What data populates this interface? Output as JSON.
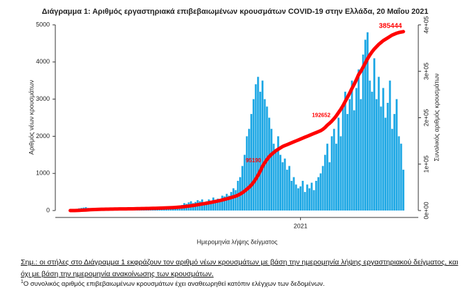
{
  "chart_data": {
    "type": "bar-line",
    "title": "Διάγραμμα 1: Αριθμός εργαστηριακά επιβεβαιωμένων κρουσμάτων COVID-19 στην Ελλάδα, 20 Μαΐου 2021",
    "x_label": "Ημερομηνία λήψης δείγματος",
    "y_label": "Αριθμός νέων κρουσμάτων",
    "y2_label": "Συνολικός αριθμός κρουσμάτων",
    "categories": [
      null,
      null,
      null,
      null,
      null,
      null,
      null,
      null,
      null,
      null,
      null,
      null,
      null,
      null,
      null,
      null,
      null,
      null,
      null,
      null,
      null,
      null,
      null,
      null,
      null,
      null,
      null,
      null,
      null,
      null,
      null,
      null,
      null,
      null,
      null,
      null,
      null,
      null,
      null,
      null,
      null,
      null,
      null,
      null,
      null,
      null,
      null,
      null,
      null,
      null,
      null,
      null,
      null,
      null,
      null,
      null,
      null,
      null,
      null,
      null,
      null,
      null,
      null,
      null,
      null,
      null,
      null,
      null,
      null,
      null,
      null,
      null,
      null,
      null,
      null,
      null,
      null,
      null,
      null,
      null,
      null,
      null,
      null,
      null,
      null,
      null,
      null,
      null,
      null,
      null,
      null,
      null,
      null,
      null,
      null,
      null,
      null,
      null,
      null,
      null,
      null,
      null,
      null,
      "2021",
      null,
      null,
      null,
      null,
      null,
      null,
      null,
      null,
      null,
      null,
      null,
      null,
      null,
      null,
      null,
      null,
      null,
      null,
      null,
      null,
      null,
      null,
      null,
      null,
      null,
      null,
      null,
      null,
      null,
      null,
      null,
      null,
      null,
      null,
      null,
      null,
      null,
      null,
      null,
      null,
      null,
      null,
      null,
      null,
      null,
      null
    ],
    "series": [
      {
        "name": "Νέα κρούσματα",
        "color": "#1aa6e4",
        "values": [
          0,
          5,
          20,
          40,
          60,
          70,
          80,
          90,
          70,
          60,
          50,
          40,
          30,
          20,
          15,
          10,
          15,
          20,
          10,
          15,
          10,
          15,
          20,
          10,
          15,
          20,
          25,
          15,
          20,
          30,
          20,
          25,
          30,
          40,
          30,
          25,
          35,
          40,
          30,
          45,
          40,
          50,
          60,
          45,
          35,
          50,
          60,
          80,
          100,
          120,
          150,
          200,
          180,
          220,
          250,
          200,
          230,
          280,
          250,
          300,
          220,
          250,
          300,
          270,
          350,
          280,
          320,
          300,
          400,
          380,
          450,
          400,
          500,
          600,
          550,
          800,
          900,
          1200,
          1500,
          2000,
          2200,
          2600,
          3000,
          3400,
          3600,
          3200,
          3500,
          3000,
          2800,
          2500,
          2200,
          1800,
          1600,
          2000,
          1500,
          1300,
          1400,
          1100,
          1200,
          800,
          900,
          700,
          600,
          650,
          800,
          500,
          700,
          600,
          750,
          550,
          800,
          900,
          1000,
          1200,
          1500,
          1800,
          1300,
          2000,
          2200,
          1800,
          2500,
          2000,
          2800,
          3200,
          2600,
          3000,
          3500,
          2700,
          3300,
          3800,
          3000,
          4200,
          4600,
          4800,
          3500,
          3200,
          4100,
          3000,
          3600,
          2800,
          3300,
          2500,
          2900,
          3500,
          2200,
          2600,
          3000,
          2000,
          1800,
          1100
        ]
      },
      {
        "name": "Συνολικά κρούσματα",
        "color": "#ff0000",
        "axis": "y2",
        "values": [
          0,
          5,
          60,
          200,
          400,
          650,
          900,
          1200,
          1500,
          1800,
          2000,
          2200,
          2400,
          2600,
          2700,
          2800,
          2900,
          3000,
          3100,
          3200,
          3300,
          3400,
          3450,
          3500,
          3550,
          3600,
          3700,
          3750,
          3800,
          3900,
          4000,
          4100,
          4200,
          4300,
          4400,
          4500,
          4600,
          4800,
          4900,
          5000,
          5200,
          5400,
          5600,
          5800,
          6000,
          6200,
          6400,
          6700,
          7000,
          7400,
          7800,
          8400,
          9000,
          9600,
          10300,
          11000,
          11700,
          12500,
          13300,
          14200,
          15000,
          15800,
          16700,
          17600,
          18600,
          19600,
          20600,
          21600,
          22800,
          24000,
          25300,
          26500,
          28000,
          29500,
          31000,
          33000,
          35500,
          38500,
          42000,
          46000,
          50000,
          55000,
          61000,
          68000,
          76000,
          85000,
          95190,
          103000,
          110000,
          116000,
          121000,
          125000,
          129000,
          132000,
          135000,
          138000,
          140000,
          142000,
          144000,
          146000,
          148000,
          150000,
          152000,
          154000,
          156000,
          158000,
          160000,
          162000,
          164000,
          166000,
          168000,
          170000,
          172000,
          175000,
          179000,
          184000,
          188000,
          192652,
          198000,
          204000,
          211000,
          218000,
          226000,
          235000,
          244000,
          253000,
          263000,
          272000,
          282000,
          293000,
          300000,
          309000,
          318000,
          327000,
          335000,
          342000,
          348000,
          353000,
          358000,
          362000,
          366000,
          369000,
          372000,
          375000,
          378000,
          380000,
          382000,
          383500,
          384500,
          385444
        ],
        "value_labels": [
          null,
          null,
          null,
          null,
          null,
          null,
          null,
          null,
          null,
          null,
          null,
          null,
          null,
          null,
          null,
          null,
          null,
          null,
          null,
          null,
          null,
          null,
          null,
          null,
          null,
          null,
          null,
          null,
          null,
          null,
          null,
          null,
          null,
          null,
          null,
          null,
          null,
          null,
          null,
          null,
          null,
          null,
          null,
          null,
          null,
          null,
          null,
          null,
          null,
          null,
          null,
          null,
          null,
          null,
          null,
          null,
          null,
          null,
          null,
          null,
          null,
          null,
          null,
          null,
          null,
          null,
          null,
          null,
          null,
          null,
          null,
          null,
          null,
          null,
          null,
          null,
          null,
          null,
          null,
          null,
          null,
          null,
          null,
          null,
          null,
          null,
          "95190",
          null,
          null,
          null,
          null,
          null,
          null,
          null,
          null,
          null,
          null,
          null,
          null,
          null,
          null,
          null,
          null,
          null,
          null,
          null,
          null,
          null,
          null,
          null,
          null,
          null,
          null,
          null,
          null,
          null,
          null,
          "192652",
          null,
          null,
          null,
          null,
          null,
          null,
          null,
          null,
          null,
          null,
          null,
          null,
          null,
          null,
          null,
          null,
          null,
          null,
          null,
          null,
          null,
          null,
          null,
          null,
          null,
          null,
          null,
          null,
          null,
          null,
          null,
          "385444"
        ]
      }
    ],
    "ylim": [
      0,
      5000
    ],
    "yticks": [
      0,
      1000,
      2000,
      3000,
      4000,
      5000
    ],
    "y2lim": [
      0,
      400000
    ],
    "y2ticks": [
      {
        "value": 0,
        "label": "0e+00"
      },
      {
        "value": 100000,
        "label": "1e+05"
      },
      {
        "value": 200000,
        "label": "2e+05"
      },
      {
        "value": 300000,
        "label": "3e+05"
      },
      {
        "value": 400000,
        "label": "4e+05"
      }
    ],
    "note": "Σημ.: οι στήλες στο Διάγραμμα 1 εκφράζουν τον αριθμό νέων κρουσμάτων με βάση την ημερομηνία λήψης εργαστηριακού δείγματος, και όχι με βάση την ημερομηνία ανακοίνωσης των κρουσμάτων.",
    "footnote_marker": "1",
    "footnote": "Ο συνολικός αριθμός επιβεβαιωμένων κρουσμάτων έχει αναθεωρηθεί κατόπιν ελέγχων των δεδομένων."
  }
}
